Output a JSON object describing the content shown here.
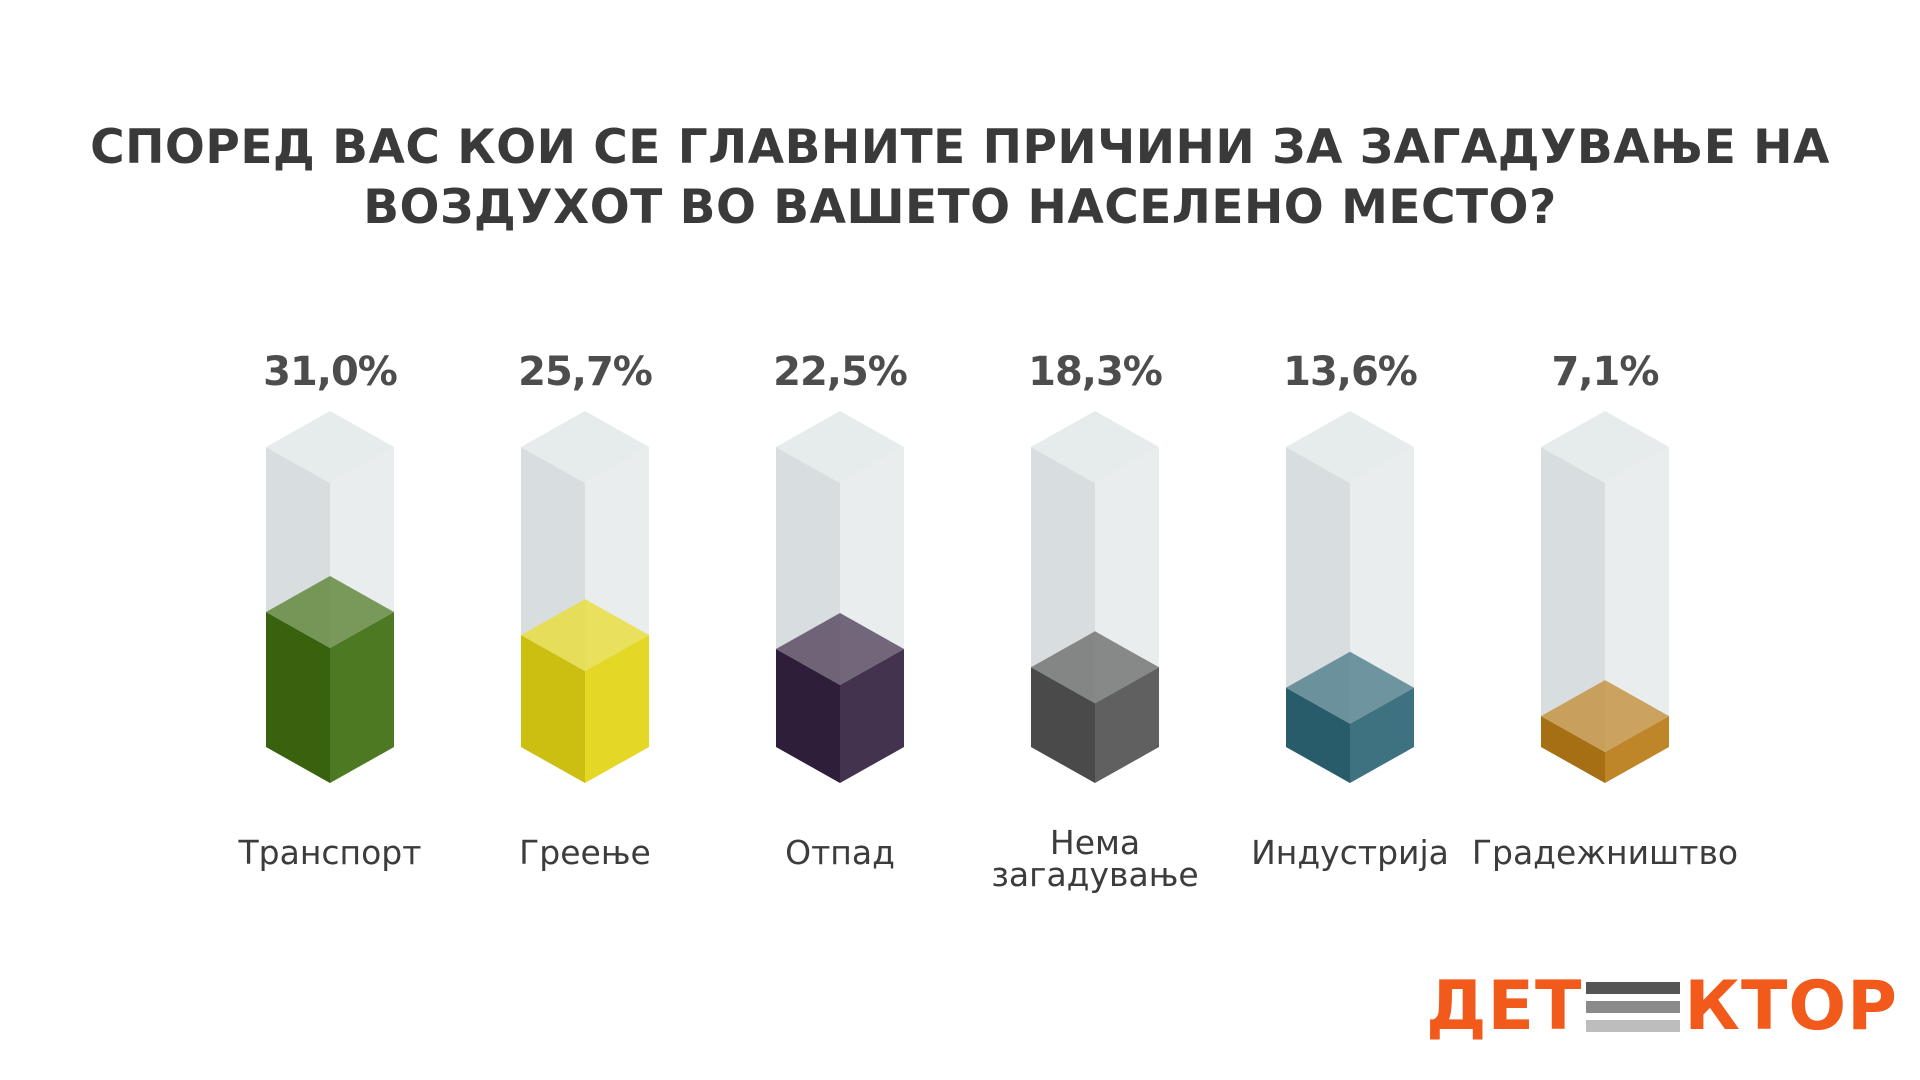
{
  "title_lines": [
    "СПОРЕД ВАС КОИ СЕ ГЛАВНИТЕ ПРИЧИНИ ЗА ЗАГАДУВАЊЕ НА",
    "ВОЗДУХОТ ВО ВАШЕТО НАСЕЛЕНО МЕСТО?"
  ],
  "chart_data": {
    "type": "bar",
    "title": "СПОРЕД ВАС КОИ СЕ ГЛАВНИТЕ ПРИЧИНИ ЗА ЗАГАДУВАЊЕ НА ВОЗДУХОТ ВО ВАШЕТО НАСЕЛЕНО МЕСТО?",
    "categories": [
      "Транспорт",
      "Греење",
      "Отпад",
      "Нема загадување",
      "Индустрија",
      "Градежништво"
    ],
    "category_lines": [
      [
        "Транспорт"
      ],
      [
        "Греење"
      ],
      [
        "Отпад"
      ],
      [
        "Нема",
        "загадување"
      ],
      [
        "Индустрија"
      ],
      [
        "Градежништво"
      ]
    ],
    "values": [
      31.0,
      25.7,
      22.5,
      18.3,
      13.6,
      7.1
    ],
    "value_labels": [
      "31,0%",
      "25,7%",
      "22,5%",
      "18,3%",
      "13,6%",
      "7,1%"
    ],
    "unit": "%",
    "colors": [
      "#3e6d10",
      "#e3d413",
      "#33213f",
      "#525252",
      "#2e6676",
      "#b87b16"
    ],
    "container_color": "#e1e7e8",
    "grid": false,
    "legend": "none",
    "ylim": [
      0,
      100
    ]
  },
  "logo": {
    "left_text": "ДЕТ",
    "right_text": "КТОР",
    "primary_color": "#f25a1c"
  }
}
